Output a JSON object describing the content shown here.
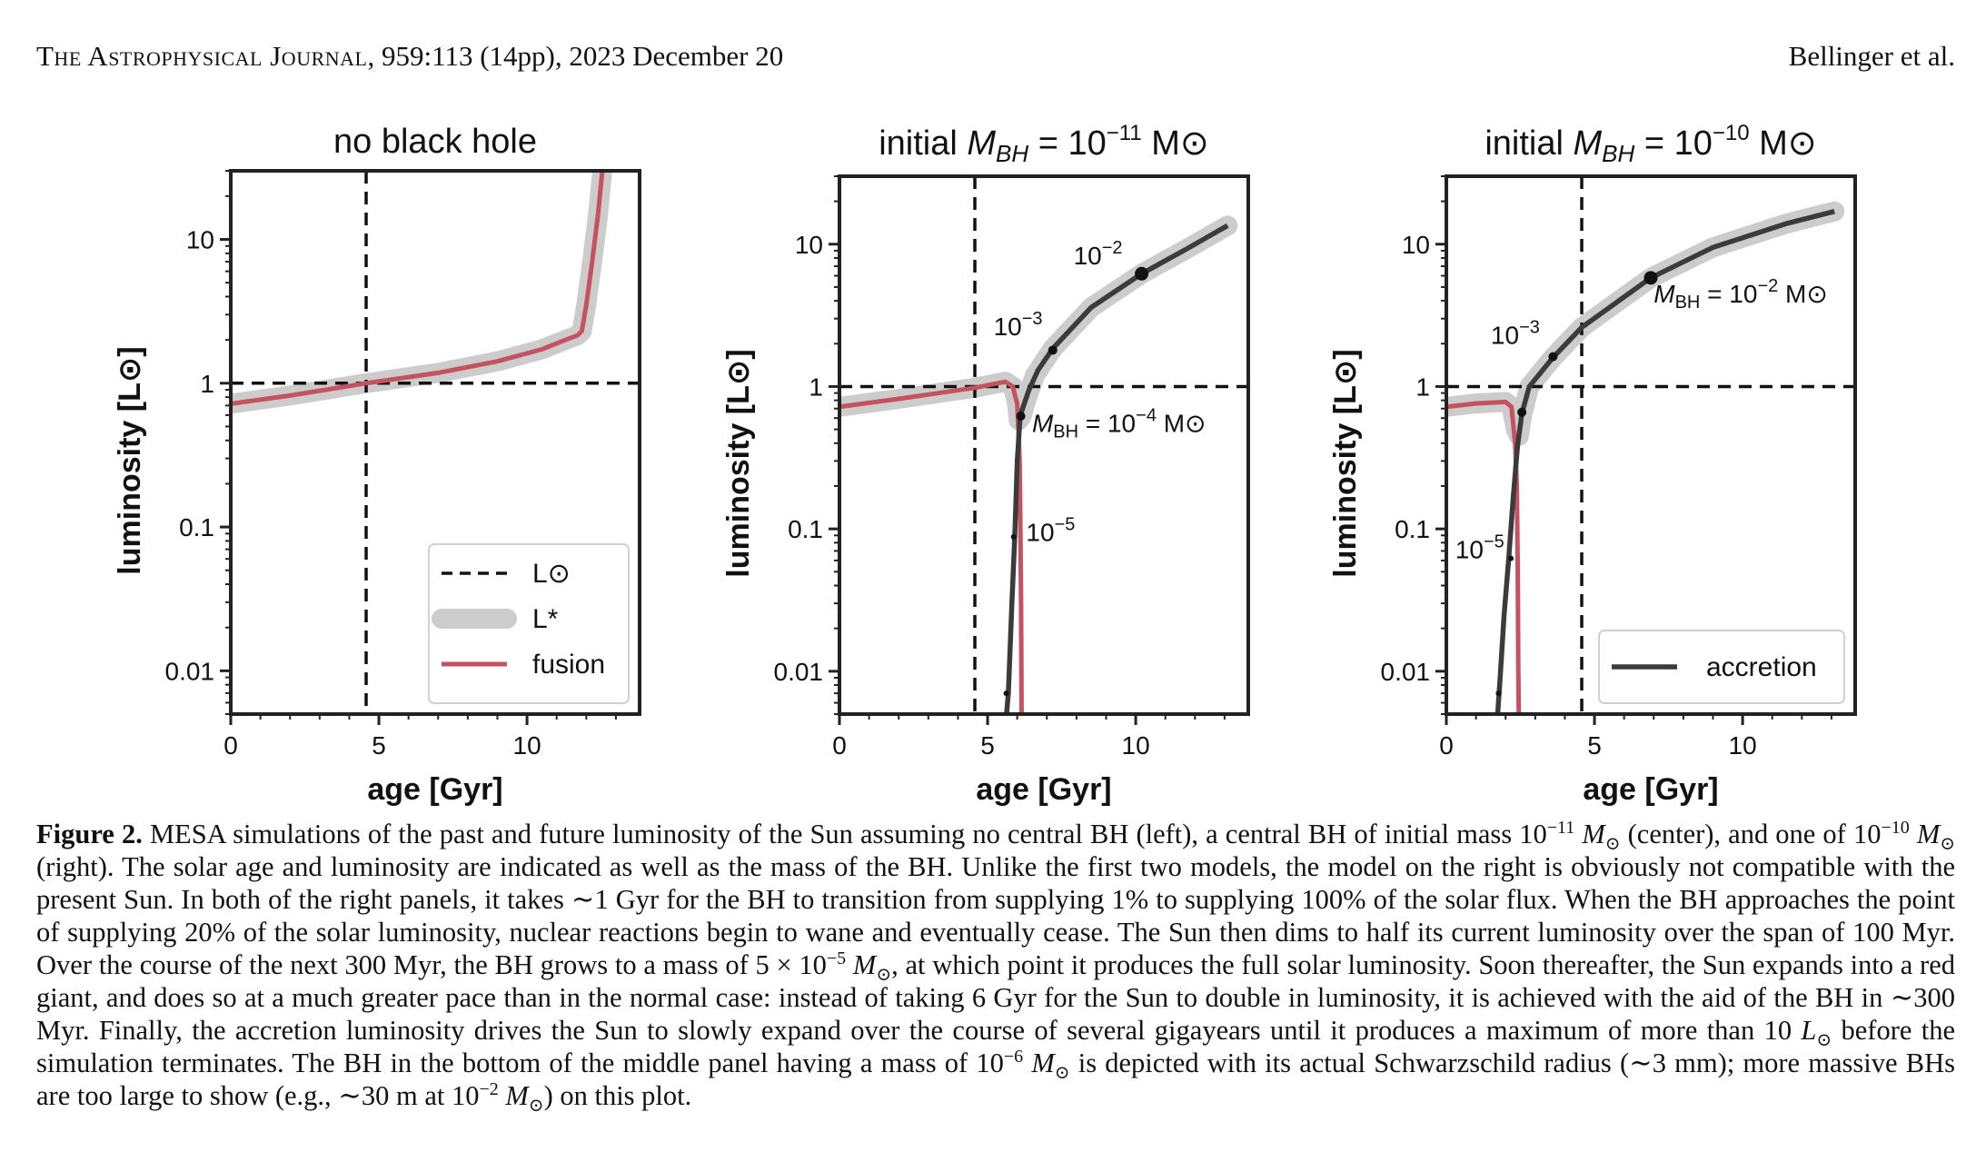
{
  "header": {
    "journal_prefix": "The Astrophysical Journal",
    "journal_rest": ", 959:113 (14pp), 2023 December 20",
    "authors": "Bellinger et al."
  },
  "colors": {
    "fusion": "#c4525f",
    "accretion": "#3b3b3b",
    "total_band": "#cccccc",
    "reference": "#111111"
  },
  "chart_data": [
    {
      "type": "line",
      "title": "no black hole",
      "xlabel": "age [Gyr]",
      "ylabel": "luminosity [L⊙]",
      "xlim": [
        0,
        13.8
      ],
      "ylim": [
        0.005,
        30
      ],
      "yscale": "log",
      "xticks": [
        0,
        5,
        10
      ],
      "yticks": [
        {
          "value": 0.01,
          "label": "0.01"
        },
        {
          "value": 0.1,
          "label": "0.1"
        },
        {
          "value": 1,
          "label": "1"
        },
        {
          "value": 10,
          "label": "10"
        }
      ],
      "ref_lines": {
        "age": 4.57,
        "luminosity": 1
      },
      "legend": {
        "position": "lower right",
        "entries": [
          {
            "key": "sun",
            "label": "L⊙",
            "style": "dashed"
          },
          {
            "key": "total",
            "label": "L*",
            "style": "band"
          },
          {
            "key": "fusion",
            "label": "fusion",
            "style": "fusion"
          }
        ]
      },
      "series": [
        {
          "role": "total",
          "x": [
            0,
            2,
            4.57,
            7,
            9,
            10.5,
            11.3,
            11.7,
            11.85,
            12.0,
            12.2,
            12.4,
            12.6
          ],
          "y": [
            0.72,
            0.82,
            1.0,
            1.18,
            1.42,
            1.72,
            2.0,
            2.15,
            2.3,
            3.5,
            7,
            15,
            40
          ]
        },
        {
          "role": "fusion",
          "x": [
            0,
            2,
            4.57,
            7,
            9,
            10.5,
            11.3,
            11.7,
            11.85,
            12.0,
            12.2,
            12.4,
            12.6
          ],
          "y": [
            0.72,
            0.82,
            1.0,
            1.18,
            1.42,
            1.72,
            2.0,
            2.15,
            2.3,
            3.5,
            7,
            15,
            40
          ]
        }
      ],
      "annotations": []
    },
    {
      "type": "line",
      "title_prefix": "initial ",
      "title_sym": "M",
      "title_sub": "BH",
      "title_eq": " = 10",
      "title_exp": "−11",
      "title_unit": " M⊙",
      "xlabel": "age [Gyr]",
      "ylabel": "luminosity [L⊙]",
      "xlim": [
        0,
        13.8
      ],
      "ylim": [
        0.005,
        30
      ],
      "yscale": "log",
      "xticks": [
        0,
        5,
        10
      ],
      "yticks": [
        {
          "value": 0.01,
          "label": "0.01"
        },
        {
          "value": 0.1,
          "label": "0.1"
        },
        {
          "value": 1,
          "label": "1"
        },
        {
          "value": 10,
          "label": "10"
        }
      ],
      "ref_lines": {
        "age": 4.57,
        "luminosity": 1
      },
      "series": [
        {
          "role": "total",
          "x": [
            0,
            2,
            4.57,
            5.6,
            5.85,
            6.0,
            6.05,
            6.15,
            6.3,
            6.6,
            7.2,
            8.5,
            10.2,
            11.7,
            13.1
          ],
          "y": [
            0.72,
            0.82,
            0.98,
            1.08,
            1.0,
            0.75,
            0.58,
            0.62,
            0.8,
            1.2,
            1.85,
            3.6,
            6.2,
            9.2,
            13.5
          ]
        },
        {
          "role": "fusion",
          "x": [
            0,
            2,
            4.57,
            5.6,
            5.85,
            6.0,
            6.04,
            6.08,
            6.1,
            6.13,
            6.15
          ],
          "y": [
            0.72,
            0.82,
            0.98,
            1.08,
            1.0,
            0.75,
            0.5,
            0.3,
            0.15,
            0.03,
            0.004
          ]
        },
        {
          "role": "accretion",
          "x": [
            5.6,
            5.7,
            5.82,
            5.92,
            6.0,
            6.1,
            6.2,
            6.4,
            6.7,
            7.2,
            8.5,
            10.2,
            11.7,
            13.1
          ],
          "y": [
            0.004,
            0.007,
            0.03,
            0.09,
            0.3,
            0.62,
            0.72,
            0.95,
            1.3,
            1.85,
            3.6,
            6.2,
            9.2,
            13.5
          ]
        }
      ],
      "markers": [
        {
          "x": 5.63,
          "y": 0.007,
          "size": "small"
        },
        {
          "x": 5.88,
          "y": 0.088,
          "size": "small"
        },
        {
          "x": 6.12,
          "y": 0.62,
          "size": "medium"
        },
        {
          "x": 7.2,
          "y": 1.8,
          "size": "medium"
        },
        {
          "x": 10.2,
          "y": 6.2,
          "size": "large"
        }
      ],
      "annotations": [
        {
          "id": "m2",
          "x": 7.9,
          "y": 7.2,
          "base": "10",
          "exp": "−2"
        },
        {
          "id": "m3",
          "x": 5.2,
          "y": 2.3,
          "base": "10",
          "exp": "−3"
        },
        {
          "id": "m4",
          "x": 6.5,
          "y": 0.48,
          "sym": "M",
          "sub": "BH",
          "eq": " = 10",
          "exp": "−4",
          "unit": " M⊙"
        },
        {
          "id": "m5",
          "x": 6.3,
          "y": 0.082,
          "base": "10",
          "exp": "−5"
        }
      ]
    },
    {
      "type": "line",
      "title_prefix": "initial ",
      "title_sym": "M",
      "title_sub": "BH",
      "title_eq": " = 10",
      "title_exp": "−10",
      "title_unit": " M⊙",
      "xlabel": "age [Gyr]",
      "ylabel": "luminosity [L⊙]",
      "xlim": [
        0,
        13.8
      ],
      "ylim": [
        0.005,
        30
      ],
      "yscale": "log",
      "xticks": [
        0,
        5,
        10
      ],
      "yticks": [
        {
          "value": 0.01,
          "label": "0.01"
        },
        {
          "value": 0.1,
          "label": "0.1"
        },
        {
          "value": 1,
          "label": "1"
        },
        {
          "value": 10,
          "label": "10"
        }
      ],
      "ref_lines": {
        "age": 4.57,
        "luminosity": 1
      },
      "legend": {
        "position": "lower right",
        "entries": [
          {
            "key": "accretion",
            "label": "accretion",
            "style": "accretion"
          }
        ]
      },
      "series": [
        {
          "role": "total",
          "x": [
            0,
            1.0,
            2.0,
            2.2,
            2.35,
            2.45,
            2.55,
            2.8,
            3.6,
            4.57,
            6.9,
            9.0,
            11.5,
            13.1
          ],
          "y": [
            0.72,
            0.76,
            0.78,
            0.72,
            0.5,
            0.45,
            0.62,
            1.0,
            1.6,
            2.6,
            5.8,
            9.5,
            14,
            17
          ]
        },
        {
          "role": "fusion",
          "x": [
            0,
            1.0,
            2.0,
            2.2,
            2.32,
            2.38,
            2.41,
            2.43,
            2.45
          ],
          "y": [
            0.72,
            0.76,
            0.78,
            0.72,
            0.4,
            0.2,
            0.05,
            0.01,
            0.004
          ]
        },
        {
          "role": "accretion",
          "x": [
            1.7,
            1.8,
            1.95,
            2.1,
            2.25,
            2.4,
            2.55,
            2.8,
            3.6,
            4.57,
            6.9,
            9.0,
            11.5,
            13.1
          ],
          "y": [
            0.004,
            0.008,
            0.025,
            0.06,
            0.16,
            0.38,
            0.65,
            1.0,
            1.6,
            2.6,
            5.8,
            9.5,
            14,
            17
          ]
        }
      ],
      "markers": [
        {
          "x": 1.76,
          "y": 0.007,
          "size": "small"
        },
        {
          "x": 2.18,
          "y": 0.062,
          "size": "small"
        },
        {
          "x": 2.55,
          "y": 0.66,
          "size": "medium"
        },
        {
          "x": 3.6,
          "y": 1.62,
          "size": "medium"
        },
        {
          "x": 6.9,
          "y": 5.8,
          "size": "large"
        }
      ],
      "annotations": [
        {
          "id": "m3",
          "x": 1.5,
          "y": 2.0,
          "base": "10",
          "exp": "−3"
        },
        {
          "id": "m5",
          "x": 0.3,
          "y": 0.062,
          "base": "10",
          "exp": "−5"
        },
        {
          "id": "m2",
          "x": 7.0,
          "y": 3.9,
          "sym": "M",
          "sub": "BH",
          "eq": " = 10",
          "exp": "−2",
          "unit": " M⊙"
        }
      ]
    }
  ],
  "caption": {
    "label": "Figure 2.",
    "s1a": "MESA simulations of the past and future luminosity of the Sun assuming no central BH (left), a central BH of initial mass 10",
    "s1b": "−11",
    "s1c": " M",
    "s1d": "⊙",
    "s1e": " (center), and one of 10",
    "s1f": "−10",
    "s1g": " M",
    "s1h": "⊙",
    "s2": " (right). The solar age and luminosity are indicated as well as the mass of the BH. Unlike the first two models, the model on the right is obviously not compatible with the present Sun. In both of the right panels, it takes ∼1 Gyr for the BH to transition from supplying 1% to supplying 100% of the solar flux. When the BH approaches the point of supplying 20% of the solar luminosity, nuclear reactions begin to wane and eventually cease. The Sun then dims to half its current luminosity over the span of 100 Myr. Over the course of the next 300 Myr, the BH grows to a mass of 5 × 10",
    "s2b": "−5",
    "s2c": " M",
    "s2d": "⊙",
    "s3": ", at which point it produces the full solar luminosity. Soon thereafter, the Sun expands into a red giant, and does so at a much greater pace than in the normal case: instead of taking 6 Gyr for the Sun to double in luminosity, it is achieved with the aid of the BH in ∼300 Myr. Finally, the accretion luminosity drives the Sun to slowly expand over the course of several gigayears until it produces a maximum of more than 10 ",
    "s3b": "L",
    "s3c": "⊙",
    "s4": " before the simulation terminates. The BH in the bottom of the middle panel having a mass of 10",
    "s4b": "−6",
    "s4c": " M",
    "s4d": "⊙",
    "s5": " is depicted with its actual Schwarzschild radius (∼3 mm); more massive BHs are too large to show (e.g., ∼30 m at 10",
    "s5b": "−2",
    "s5c": " M",
    "s5d": "⊙",
    "s6": ") on this plot."
  }
}
